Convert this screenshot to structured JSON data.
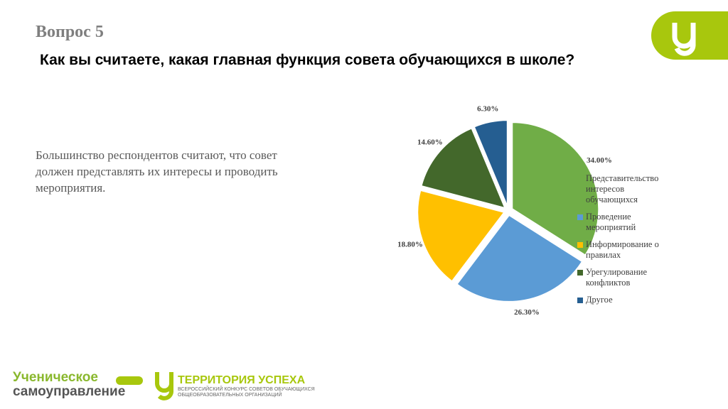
{
  "question_number": "Вопрос 5",
  "question": "Как вы считаете, какая главная функция совета обучающихся в школе?",
  "summary": "Большинство респондентов считают, что совет должен представлять их интересы и проводить мероприятия.",
  "logos": {
    "left_line1": "Ученическое",
    "left_line2": "самоуправление",
    "right_title": "ТЕРРИТОРИЯ УСПЕХА",
    "right_sub1": "ВСЕРОССИЙСКИЙ КОНКУРС СОВЕТОВ ОБУЧАЮЩИХСЯ",
    "right_sub2": "ОБЩЕОБРАЗОВАТЕЛЬНЫХ ОРГАНИЗАЦИЙ"
  },
  "chart_data": {
    "type": "pie",
    "categories": [
      "Представительство интересов обучающихся",
      "Проведение мероприятий",
      "Информирование о правилах",
      "Урегулирование конфликтов",
      "Другое"
    ],
    "values": [
      34,
      26.3,
      18.8,
      14.6,
      6.3
    ],
    "value_labels": [
      "34.00%",
      "26.30%",
      "18.80%",
      "14.60%",
      "6.30%"
    ],
    "colors": [
      "#70ad47",
      "#5b9bd5",
      "#ffc000",
      "#43682b",
      "#255e91"
    ],
    "legend": "right"
  }
}
